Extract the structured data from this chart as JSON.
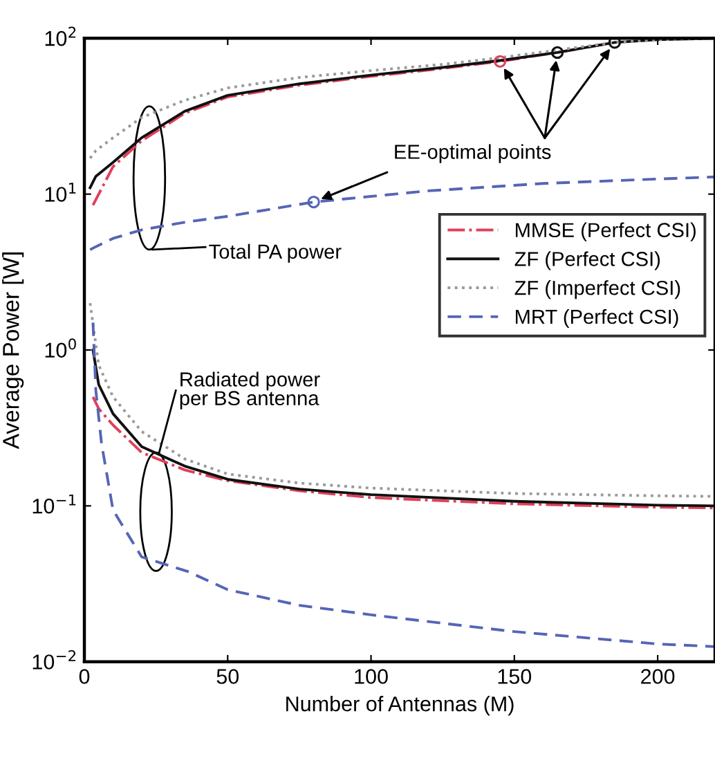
{
  "chart_data": {
    "type": "line",
    "xlabel": "Number of Antennas (M)",
    "ylabel": "Average Power [W]",
    "log": "y",
    "grid": false,
    "legend": "right",
    "xlim": [
      0,
      220
    ],
    "xticks": [
      0,
      50,
      100,
      150,
      200
    ],
    "ylim": [
      0.01,
      100
    ],
    "yticks": [
      {
        "value": 0.01,
        "label": "10$^{−2}$"
      },
      {
        "value": 0.1,
        "label": "10$^{−1}$"
      },
      {
        "value": 1,
        "label": "10$^{0}$"
      },
      {
        "value": 10,
        "label": "10$^{1}$"
      },
      {
        "value": 100,
        "label": "10$^{2}$"
      }
    ],
    "series": [
      {
        "name": "MMSE (Perfect CSI)",
        "color": "#e0405a",
        "line_style": "dashdot",
        "x": [
          3,
          10,
          20,
          35,
          50,
          75,
          100,
          125,
          145,
          165,
          185
        ],
        "values": [
          8.5,
          15,
          22,
          33,
          42,
          50,
          57,
          64,
          71,
          81,
          94
        ]
      },
      {
        "name": "ZF (Perfect CSI)",
        "color": "#111111",
        "line_style": "solid",
        "x": [
          2,
          4,
          10,
          20,
          35,
          50,
          75,
          100,
          125,
          145,
          165,
          185,
          200,
          220
        ],
        "values": [
          11,
          13,
          16,
          23,
          34,
          43,
          51,
          58,
          65,
          72,
          81,
          94,
          98,
          100
        ]
      },
      {
        "name": "ZF (Imperfect CSI)",
        "color": "#9a9a9a",
        "line_style": "dotted",
        "x": [
          2,
          4,
          10,
          20,
          35,
          50,
          75,
          100,
          125,
          145,
          165,
          185,
          200,
          220
        ],
        "values": [
          17,
          19,
          23,
          31,
          40,
          48,
          56,
          62,
          68,
          75,
          84,
          94,
          98,
          100
        ]
      },
      {
        "name": "MRT (Perfect CSI)",
        "color": "#5565b5",
        "line_style": "dashed",
        "x": [
          2,
          4,
          10,
          20,
          35,
          50,
          80,
          120,
          160,
          190,
          220
        ],
        "values": [
          4.4,
          4.6,
          5.2,
          5.9,
          6.6,
          7.2,
          8.9,
          10.5,
          11.7,
          12.3,
          12.9
        ]
      },
      {
        "color": "#e0405a",
        "line_style": "dashdot",
        "x": [
          3,
          5,
          10,
          20,
          35,
          50,
          75,
          100,
          150,
          200,
          220
        ],
        "values": [
          0.5,
          0.42,
          0.33,
          0.22,
          0.17,
          0.145,
          0.125,
          0.113,
          0.103,
          0.098,
          0.097
        ]
      },
      {
        "color": "#111111",
        "line_style": "solid",
        "x": [
          3,
          5,
          10,
          20,
          35,
          50,
          75,
          100,
          150,
          200,
          220
        ],
        "values": [
          1.0,
          0.6,
          0.39,
          0.24,
          0.18,
          0.148,
          0.128,
          0.118,
          0.107,
          0.101,
          0.1
        ]
      },
      {
        "color": "#9a9a9a",
        "line_style": "dotted",
        "x": [
          2,
          5,
          10,
          20,
          35,
          50,
          75,
          100,
          150,
          200,
          220
        ],
        "values": [
          2.0,
          0.8,
          0.5,
          0.3,
          0.2,
          0.16,
          0.14,
          0.13,
          0.12,
          0.116,
          0.115
        ]
      },
      {
        "color": "#5565b5",
        "line_style": "dashed",
        "x": [
          3,
          4,
          6,
          10,
          20,
          36,
          50,
          75,
          100,
          150,
          200,
          220
        ],
        "values": [
          1.5,
          0.55,
          0.25,
          0.094,
          0.047,
          0.038,
          0.029,
          0.023,
          0.02,
          0.0156,
          0.013,
          0.0125
        ]
      },
      {
        "type": "scatter",
        "marker": "circle",
        "x": [
          145,
          165,
          185,
          80
        ],
        "values": [
          71,
          81,
          94,
          8.9
        ],
        "colors": [
          "#e0405a",
          "#111111",
          "#111111",
          "#5565b5"
        ]
      }
    ],
    "annotations": [
      {
        "text": "EE-optimal points",
        "x": 80,
        "y": 8.9
      },
      "Total PA power",
      {
        "text": "Radiated power\nper BS antenna",
        "x": 25,
        "y": 0.22
      }
    ]
  }
}
